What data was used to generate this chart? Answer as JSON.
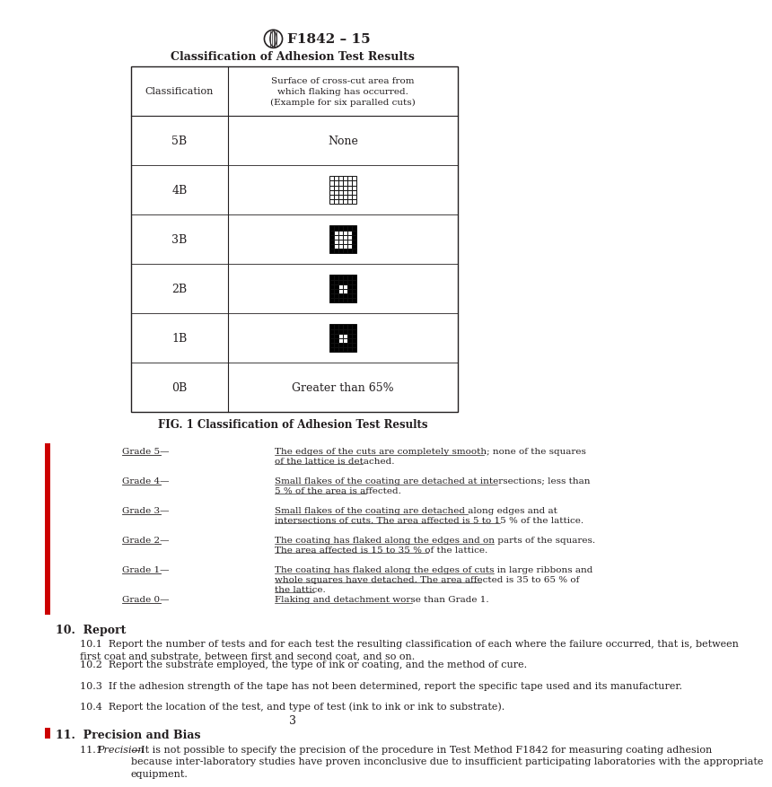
{
  "page_width": 8.16,
  "page_height": 10.56,
  "bg_color": "#ffffff",
  "header_title": "F1842 – 15",
  "table_title": "Classification of Adhesion Test Results",
  "fig_caption": "FIG. 1 Classification of Adhesion Test Results",
  "classifications": [
    "5B",
    "4B",
    "3B",
    "2B",
    "1B",
    "0B"
  ],
  "col1_header": "Classification",
  "col2_header": "Surface of cross-cut area from\nwhich flaking has occurred.\n(Example for six paralled cuts)",
  "grade_labels": [
    "Grade 5—",
    "Grade 4—",
    "Grade 3—",
    "Grade 2—",
    "Grade 1—",
    "Grade 0—"
  ],
  "grade_descriptions": [
    "The edges of the cuts are completely smooth; none of the squares\nof the lattice is detached.",
    "Small flakes of the coating are detached at intersections; less than\n5 % of the area is affected.",
    "Small flakes of the coating are detached along edges and at\nintersections of cuts. The area affected is 5 to 15 % of the lattice.",
    "The coating has flaked along the edges and on parts of the squares.\nThe area affected is 15 to 35 % of the lattice.",
    "The coating has flaked along the edges of cuts in large ribbons and\nwhole squares have detached. The area affected is 35 to 65 % of\nthe lattice.",
    "Flaking and detachment worse than Grade 1."
  ],
  "section10_title": "10.  Report",
  "section10_items": [
    "10.1  Report the number of tests and for each test the resulting classification of each where the failure occurred, that is, between\nfirst coat and substrate, between first and second coat, and so on.",
    "10.2  Report the substrate employed, the type of ink or coating, and the method of cure.",
    "10.3  If the adhesion strength of the tape has not been determined, report the specific tape used and its manufacturer.",
    "10.4  Report the location of the test, and type of test (ink to ink or ink to substrate)."
  ],
  "section11_title": "11.  Precision and Bias",
  "section11_text": "11.1  —It is not possible to specify the precision of the procedure in Test Method F1842 for measuring coating adhesion\nbecause inter-laboratory studies have proven inconclusive due to insufficient participating laboratories with the appropriate\nequipment.",
  "page_number": "3",
  "text_color": "#231f20",
  "red_bar_color": "#cc0000",
  "table_line_color": "#231f20"
}
